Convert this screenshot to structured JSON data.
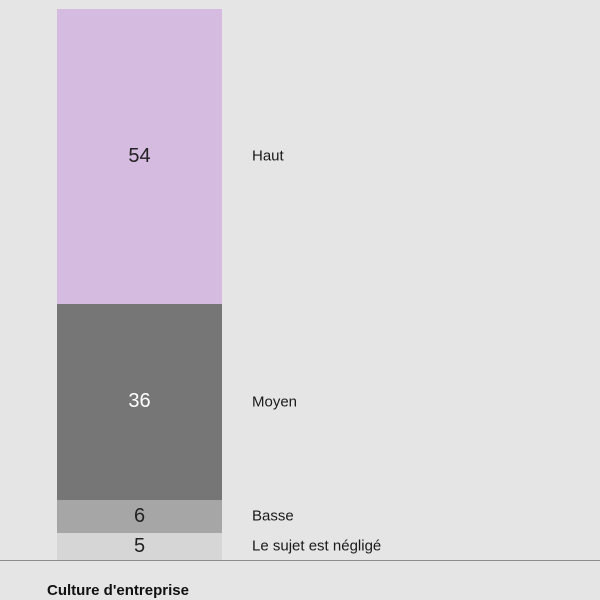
{
  "chart_data": {
    "type": "bar",
    "stacked": true,
    "categories": [
      "Culture d'entreprise"
    ],
    "series": [
      {
        "name": "Haut",
        "values": [
          54
        ],
        "color": "#d4bbdf",
        "label_color": "#222222"
      },
      {
        "name": "Moyen",
        "values": [
          36
        ],
        "color": "#767676",
        "label_color": "#ffffff"
      },
      {
        "name": "Basse",
        "values": [
          6
        ],
        "color": "#a6a6a6",
        "label_color": "#222222"
      },
      {
        "name": "Le sujet est négligé",
        "values": [
          5
        ],
        "color": "#d6d6d6",
        "label_color": "#222222"
      }
    ],
    "xlabel": "Culture d'entreprise",
    "ylabel": "",
    "title": "",
    "legend": "inline-right",
    "grid": false
  }
}
